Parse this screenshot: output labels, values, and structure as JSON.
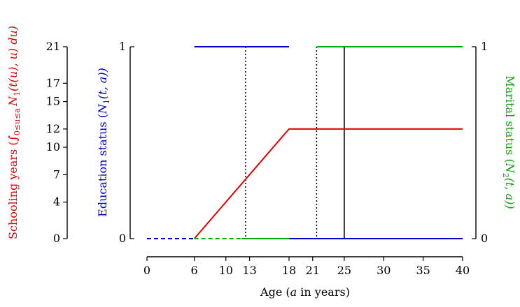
{
  "chart_data": {
    "type": "line",
    "x_axis": {
      "label_prefix": "Age (",
      "label_var": "a",
      "label_suffix": " in years)",
      "ticks": [
        0,
        6,
        10,
        13,
        18,
        21,
        25,
        30,
        35,
        40
      ],
      "range": [
        0,
        40
      ]
    },
    "left_axis_schooling": {
      "label_prefix": "Schooling years (",
      "label_integral": "∫",
      "label_limits": "0≤u≤a",
      "label_body": "N",
      "label_sub": "1",
      "label_args": "(t(u), u) du)",
      "ticks": [
        0,
        4,
        7,
        10,
        12,
        15,
        17,
        21
      ],
      "range": [
        0,
        21
      ],
      "color": "#e00000"
    },
    "left_axis_education": {
      "label_prefix": "Education status (",
      "label_var": "N",
      "label_sub": "1",
      "label_args": "(t, a))",
      "ticks": [
        "0",
        "1"
      ],
      "range": [
        0,
        1
      ],
      "color": "#0000cc"
    },
    "right_axis_marital": {
      "label_prefix": "Marital status (",
      "label_var": "N",
      "label_sub": "2",
      "label_args": "(t, a))",
      "ticks": [
        "0",
        "1"
      ],
      "range": [
        0,
        1
      ],
      "color": "#00aa00"
    },
    "series": [
      {
        "key": "schooling",
        "color": "#e00000",
        "axis": "schooling",
        "segments": [
          {
            "style": "solid",
            "points": [
              [
                6,
                0
              ],
              [
                18,
                12
              ],
              [
                40,
                12
              ]
            ]
          }
        ]
      },
      {
        "key": "education",
        "color": "#0000cc",
        "axis": "status",
        "segments": [
          {
            "style": "dashed",
            "points": [
              [
                0,
                0
              ],
              [
                6,
                0
              ]
            ]
          },
          {
            "style": "solid",
            "points": [
              [
                6,
                1
              ],
              [
                18,
                1
              ]
            ]
          },
          {
            "style": "solid",
            "points": [
              [
                18,
                0
              ],
              [
                40,
                0
              ]
            ]
          }
        ]
      },
      {
        "key": "marital",
        "color": "#00aa00",
        "axis": "status",
        "segments": [
          {
            "style": "dashed",
            "points": [
              [
                6,
                0
              ],
              [
                12,
                0
              ]
            ]
          },
          {
            "style": "solid",
            "points": [
              [
                12,
                0
              ],
              [
                18,
                0
              ]
            ]
          },
          {
            "style": "solid",
            "points": [
              [
                21.5,
                1
              ],
              [
                40,
                1
              ]
            ]
          }
        ]
      }
    ],
    "vertical_lines": [
      {
        "x": 12.5,
        "style": "dotted",
        "color": "#000000"
      },
      {
        "x": 21.5,
        "style": "dotted",
        "color": "#000000"
      },
      {
        "x": 25,
        "style": "solid",
        "color": "#000000"
      }
    ]
  }
}
